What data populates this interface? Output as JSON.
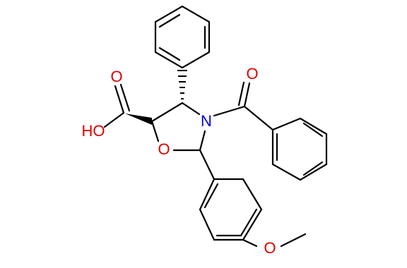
{
  "atom_labels": [
    "O",
    "HO",
    "O",
    "N",
    "O",
    "O"
  ]
}
